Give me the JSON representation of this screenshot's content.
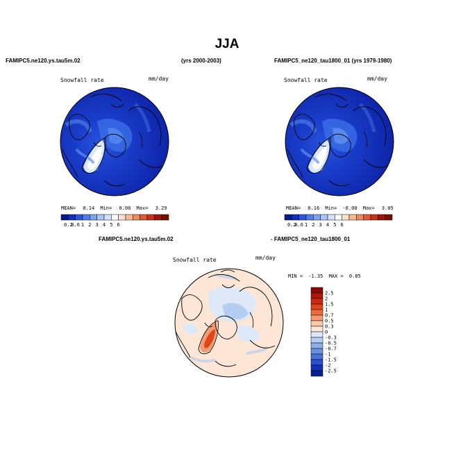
{
  "title": "JJA",
  "case_label": "FAMIPC5.ne120.ys.tau5m.02",
  "case_years": "(yrs 2000-2003)",
  "control_label": "FAMIPC5_ne120_tau1800_01 (yrs 1979-1980)",
  "diff_label_left": "FAMIPC5.ne120.ys.tau5m.02",
  "diff_label_right": "- FAMIPC5_ne120_tau1800_01",
  "panels": {
    "case": {
      "variable": "Snowfall rate",
      "units": "mm/day",
      "mean_label": "MEAN=",
      "mean": "0.14",
      "min_label": "Min=",
      "min": "0.00",
      "max_label": "Max=",
      "max": "3.29"
    },
    "control": {
      "variable": "Snowfall rate",
      "units": "mm/day",
      "mean_label": "MEAN=",
      "mean": "0.16",
      "min_label": "Min=",
      "min": "-0.00",
      "max_label": "Max=",
      "max": "3.05"
    },
    "diff": {
      "variable": "Snowfall rate",
      "units": "mm/day",
      "min_label": "MIN =",
      "min": "-1.35",
      "max_label": "MAX =",
      "max": "0.85"
    }
  },
  "main_colorbar": {
    "labels": [
      "0.2",
      "0.6",
      "1",
      "2",
      "3",
      "4",
      "5",
      "6"
    ],
    "colors": [
      "#0a1a8c",
      "#1030c0",
      "#2a55dd",
      "#4f7fe8",
      "#7da3f0",
      "#a9c4f5",
      "#d3e2fa",
      "#ffffff",
      "#fde0cc",
      "#f9b993",
      "#f08a5e",
      "#e05a33",
      "#c43418",
      "#9e1608",
      "#781000"
    ]
  },
  "diff_colorbar": {
    "labels": [
      "2.5",
      "2",
      "1.5",
      "1",
      "0.7",
      "0.5",
      "0.3",
      "0",
      "-0.3",
      "-0.5",
      "-0.7",
      "-1",
      "-1.5",
      "-2",
      "-2.5"
    ],
    "colors": [
      "#8a0a05",
      "#b0180a",
      "#cc2a10",
      "#e04518",
      "#ee6a38",
      "#f59a70",
      "#fbc8a8",
      "#fde6d6",
      "#dde9f8",
      "#b5cdf0",
      "#8eaee8",
      "#6a8fe0",
      "#4a6fd8",
      "#2b4fcf",
      "#1432b8",
      "#0a1f90"
    ]
  }
}
